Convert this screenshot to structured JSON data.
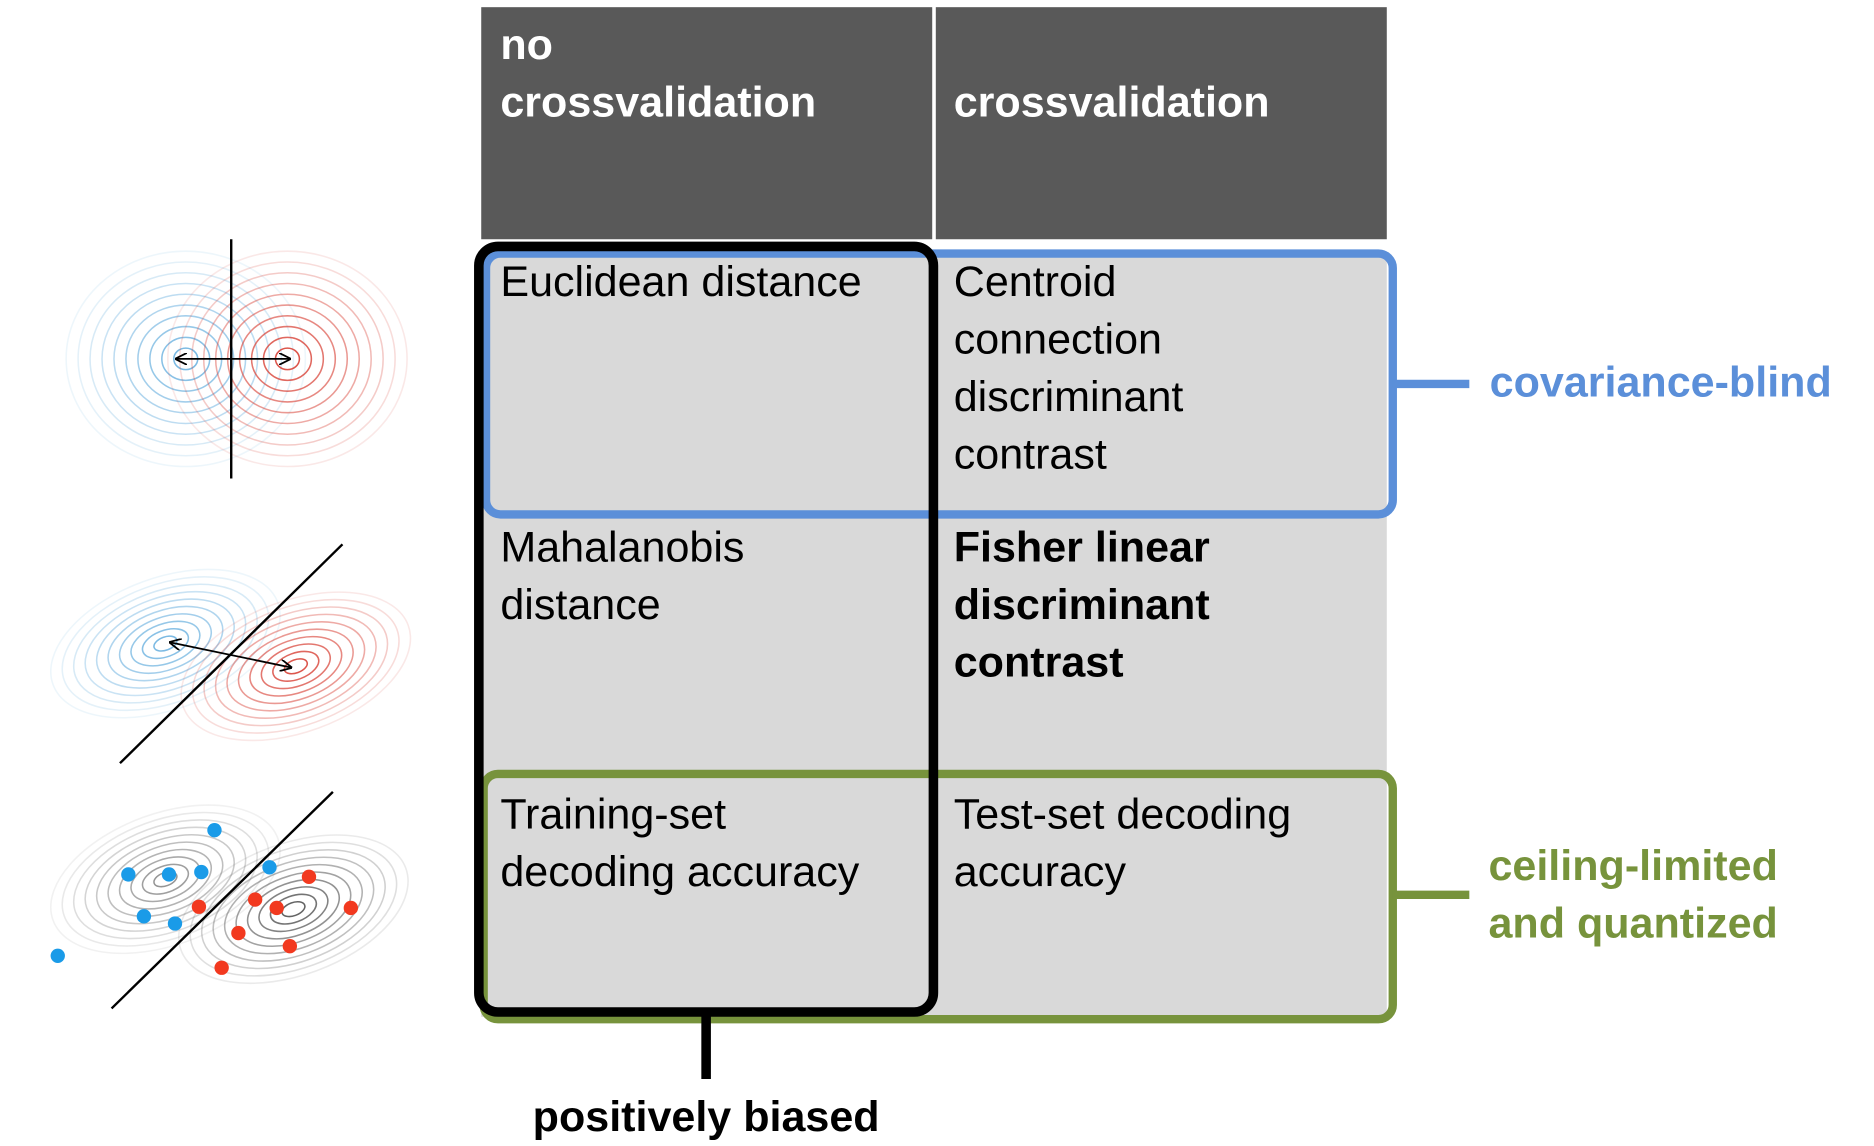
{
  "table": {
    "header": [
      [
        "no",
        "crossvalidation"
      ],
      [
        "crossvalidation"
      ]
    ],
    "rows": [
      [
        [
          "Euclidean distance"
        ],
        [
          "Centroid",
          "connection",
          "discriminant",
          "contrast"
        ]
      ],
      [
        [
          "Mahalanobis",
          "distance"
        ],
        [
          "Fisher linear",
          "discriminant",
          "contrast"
        ]
      ],
      [
        [
          "Training-set",
          "decoding accuracy"
        ],
        [
          "Test-set decoding",
          "accuracy"
        ]
      ]
    ]
  },
  "annotations": {
    "covariance_blind": [
      "covariance-blind"
    ],
    "ceiling_limited": [
      "ceiling-limited",
      "and quantized"
    ],
    "positively_biased": [
      "positively biased"
    ]
  }
}
